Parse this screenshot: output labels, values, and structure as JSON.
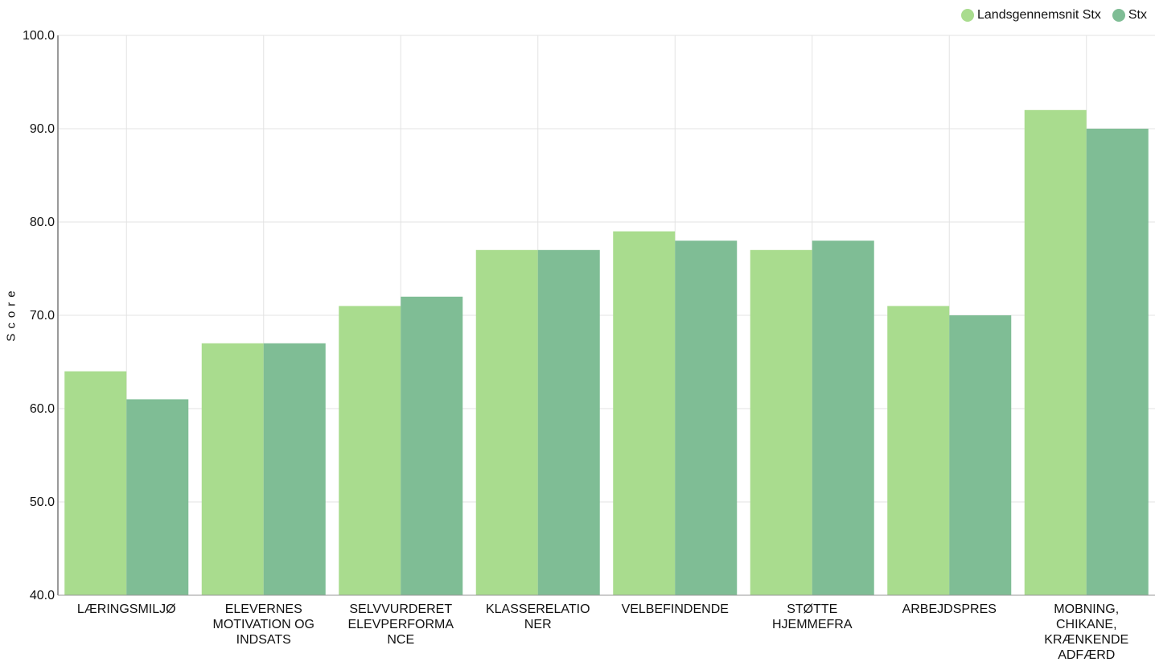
{
  "chart_data": {
    "type": "bar",
    "categories": [
      [
        "LÆRINGSMILJØ"
      ],
      [
        "ELEVERNES",
        "MOTIVATION OG",
        "INDSATS"
      ],
      [
        "SELVVURDERET",
        "ELEVPERFORMA",
        "NCE"
      ],
      [
        "KLASSERELATIO",
        "NER"
      ],
      [
        "VELBEFINDENDE"
      ],
      [
        "STØTTE",
        "HJEMMEFRA"
      ],
      [
        "ARBEJDSPRES"
      ],
      [
        "MOBNING,",
        "CHIKANE,",
        "KRÆNKENDE",
        "ADFÆRD"
      ]
    ],
    "series": [
      {
        "name": "Landsgennemsnit Stx",
        "color": "#a9dc8e",
        "values": [
          64,
          67,
          71,
          77,
          79,
          77,
          71,
          92
        ]
      },
      {
        "name": "Stx",
        "color": "#7fbd95",
        "values": [
          61,
          67,
          72,
          77,
          78,
          78,
          70,
          90
        ]
      }
    ],
    "ylabel": "Score",
    "ylim": [
      40,
      100
    ],
    "yticks": [
      "40.0",
      "50.0",
      "60.0",
      "70.0",
      "80.0",
      "90.0",
      "100.0"
    ],
    "grid": true,
    "legend": "top-right"
  }
}
